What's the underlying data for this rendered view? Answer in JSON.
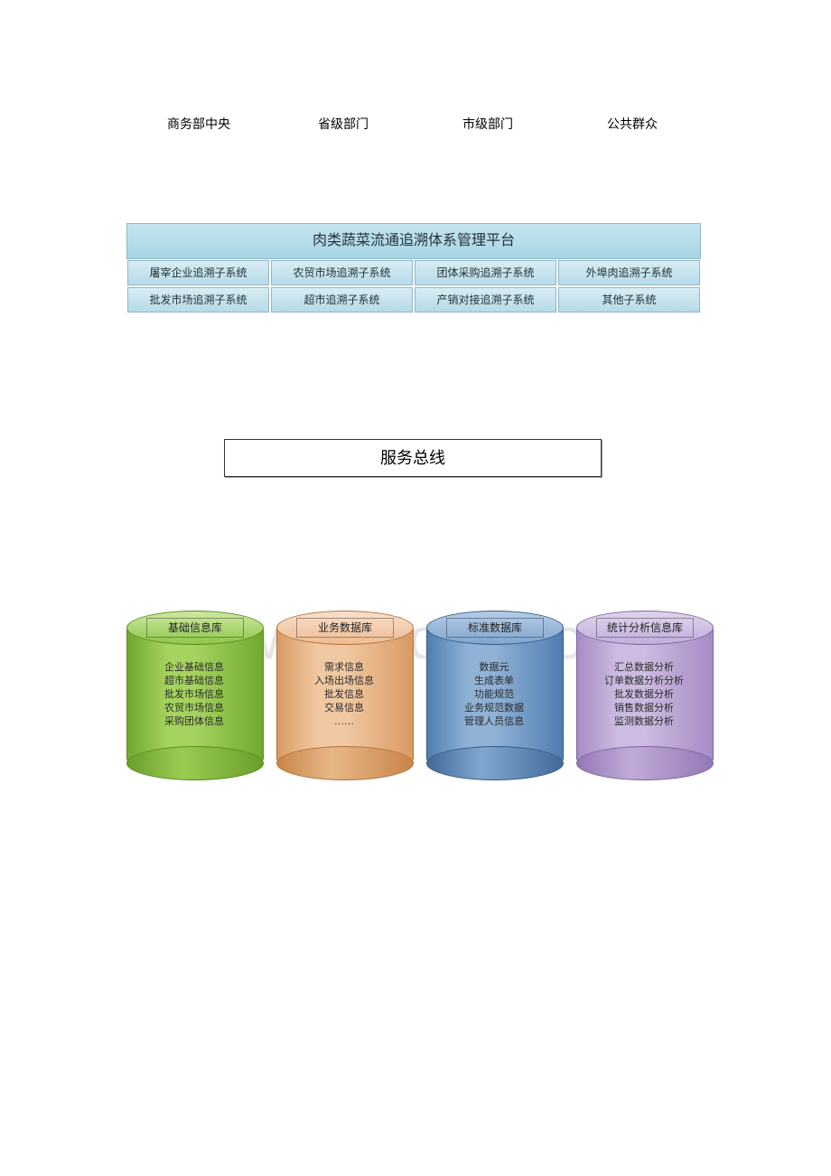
{
  "watermark": "www.bdocx.com",
  "header": {
    "items": [
      "商务部中央",
      "省级部门",
      "市级部门",
      "公共群众"
    ]
  },
  "platform": {
    "title": "肉类蔬菜流通追溯体系管理平台",
    "row1": [
      "屠宰企业追溯子系统",
      "农贸市场追溯子系统",
      "团体采购追溯子系统",
      "外埠肉追溯子系统"
    ],
    "row2": [
      "批发市场追溯子系统",
      "超市追溯子系统",
      "产销对接追溯子系统",
      "其他子系统"
    ]
  },
  "serviceBus": {
    "label": "服务总线"
  },
  "cylinders": [
    {
      "label": "基础信息库",
      "items": [
        "企业基础信息",
        "超市基础信息",
        "批发市场信息",
        "农贸市场信息",
        "采购团体信息"
      ],
      "topGradientFrom": "#cfe8a2",
      "topGradientTo": "#8fc54a",
      "bodyGradientFrom": "#a6d35f",
      "bodyGradientTo": "#6fa92f",
      "bottomGradientFrom": "#9acb52",
      "bottomGradientTo": "#6a9f2c",
      "border": "#5a8a20"
    },
    {
      "label": "业务数据库",
      "items": [
        "需求信息",
        "入场出场信息",
        "批发信息",
        "交易信息",
        "……"
      ],
      "topGradientFrom": "#f8e0cc",
      "topGradientTo": "#eebc92",
      "bodyGradientFrom": "#f0c9a3",
      "bodyGradientTo": "#d99a62",
      "bottomGradientFrom": "#e7b787",
      "bottomGradientTo": "#c98549",
      "border": "#b3713a"
    },
    {
      "label": "标准数据库",
      "items": [
        "数据元",
        "生成表单",
        "功能规范",
        "业务规范数据",
        "管理人员信息"
      ],
      "topGradientFrom": "#b7cce6",
      "topGradientTo": "#7ea6ce",
      "bodyGradientFrom": "#8fb2d6",
      "bodyGradientTo": "#4f7db0",
      "bottomGradientFrom": "#7fa6ce",
      "bottomGradientTo": "#426b9a",
      "border": "#355a85"
    },
    {
      "label": "统计分析信息库",
      "items": [
        "汇总数据分析",
        "订单数据分析分析",
        "批发数据分析",
        "销售数据分析",
        "监测数据分析"
      ],
      "topGradientFrom": "#e0d4ec",
      "topGradientTo": "#c2aedb",
      "bodyGradientFrom": "#cdbbe1",
      "bodyGradientTo": "#a68bc5",
      "bottomGradientFrom": "#c0abd7",
      "bottomGradientTo": "#9478b6",
      "border": "#7e639f"
    }
  ]
}
